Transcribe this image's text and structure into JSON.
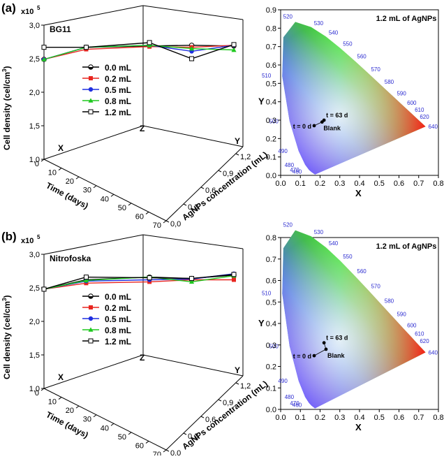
{
  "panels": [
    {
      "label": "(a)",
      "left": {
        "type": "line-3d",
        "title": "BG11",
        "scale_label": "x10",
        "scale_exp": "5",
        "ylabel": "Cell density (cel/cm",
        "ylabel_sup": "3",
        "ylabel_close": ")",
        "xlabel": "Time (days)",
        "zlabel": "AgNPs concentration (mL)",
        "axis_letters": {
          "x": "X",
          "z": "Z",
          "y": "Y"
        },
        "y_ticks": [
          "1,0",
          "1,5",
          "2,0",
          "2,5",
          "3,0"
        ],
        "y_tick_values": [
          1.0,
          1.5,
          2.0,
          2.5,
          3.0
        ],
        "time_ticks": [
          "0",
          "10",
          "20",
          "30",
          "40",
          "50",
          "60",
          "70"
        ],
        "conc_ticks": [
          "0,0",
          "0,3",
          "0,6",
          "0,9",
          "1,2"
        ],
        "series": [
          {
            "name": "0.0 mL",
            "color": "#000000",
            "marker": "half-circle",
            "values": [
              2.49,
              2.67,
              2.69,
              2.7,
              2.69
            ]
          },
          {
            "name": "0.2 mL",
            "color": "#e8251f",
            "marker": "square",
            "values": [
              2.49,
              2.64,
              2.68,
              2.67,
              2.7
            ]
          },
          {
            "name": "0.5 mL",
            "color": "#1f2fe0",
            "marker": "circle",
            "values": [
              2.49,
              2.67,
              2.7,
              2.61,
              2.7
            ]
          },
          {
            "name": "0.8 mL",
            "color": "#1ec81e",
            "marker": "triangle",
            "values": [
              2.49,
              2.67,
              2.7,
              2.65,
              2.63
            ]
          },
          {
            "name": "1.2 mL",
            "color": "#000000",
            "marker": "open-square",
            "values": [
              2.67,
              2.67,
              2.74,
              2.5,
              2.71
            ]
          }
        ]
      },
      "right": {
        "type": "cie-1931",
        "annotation": "1.2 mL of AgNPs",
        "xlabel": "X",
        "ylabel": "Y",
        "x_ticks": [
          "0.0",
          "0.1",
          "0.2",
          "0.3",
          "0.4",
          "0.5",
          "0.6",
          "0.7",
          "0.8"
        ],
        "y_ticks": [
          "0.0",
          "0.1",
          "0.2",
          "0.3",
          "0.4",
          "0.5",
          "0.6",
          "0.7",
          "0.8",
          "0.9"
        ],
        "wavelengths": [
          "460",
          "470",
          "480",
          "490",
          "500",
          "510",
          "520",
          "530",
          "540",
          "550",
          "560",
          "570",
          "580",
          "590",
          "600",
          "610",
          "620",
          "640"
        ],
        "points": [
          {
            "label": "t = 0 d",
            "x": 0.17,
            "y": 0.27
          },
          {
            "label": "t = 63 d",
            "x": 0.22,
            "y": 0.3
          },
          {
            "label": "Blank",
            "x": 0.21,
            "y": 0.29
          }
        ]
      }
    },
    {
      "label": "(b)",
      "left": {
        "type": "line-3d",
        "title": "Nitrofoska",
        "scale_label": "x10",
        "scale_exp": "5",
        "ylabel": "Cell density (cel/cm",
        "ylabel_sup": "3",
        "ylabel_close": ")",
        "xlabel": "Time (days)",
        "zlabel": "AgNPs concentration (mL)",
        "axis_letters": {
          "x": "X",
          "z": "Z",
          "y": "Y"
        },
        "y_ticks": [
          "1,0",
          "1,5",
          "2,0",
          "2,5",
          "3,0"
        ],
        "y_tick_values": [
          1.0,
          1.5,
          2.0,
          2.5,
          3.0
        ],
        "time_ticks": [
          "0",
          "10",
          "20",
          "30",
          "40",
          "50",
          "60",
          "70"
        ],
        "conc_ticks": [
          "0,0",
          "0,3",
          "0,6",
          "0,9",
          "1,2"
        ],
        "series": [
          {
            "name": "0.0 mL",
            "color": "#000000",
            "marker": "half-circle",
            "values": [
              2.48,
              2.62,
              2.66,
              2.64,
              2.69
            ]
          },
          {
            "name": "0.2 mL",
            "color": "#e8251f",
            "marker": "square",
            "values": [
              2.48,
              2.57,
              2.59,
              2.62,
              2.62
            ]
          },
          {
            "name": "0.5 mL",
            "color": "#1f2fe0",
            "marker": "circle",
            "values": [
              2.48,
              2.6,
              2.62,
              2.63,
              2.71
            ]
          },
          {
            "name": "0.8 mL",
            "color": "#1ec81e",
            "marker": "triangle",
            "values": [
              2.48,
              2.61,
              2.66,
              2.59,
              2.68
            ]
          },
          {
            "name": "1.2 mL",
            "color": "#000000",
            "marker": "open-square",
            "values": [
              2.48,
              2.66,
              2.65,
              2.64,
              2.7
            ]
          }
        ]
      },
      "right": {
        "type": "cie-1931",
        "annotation": "1.2 mL of AgNPs",
        "xlabel": "X",
        "ylabel": "Y",
        "x_ticks": [
          "0.0",
          "0.1",
          "0.2",
          "0.3",
          "0.4",
          "0.5",
          "0.6",
          "0.7",
          "0.8"
        ],
        "y_ticks": [
          "0.0",
          "0.1",
          "0.2",
          "0.3",
          "0.4",
          "0.5",
          "0.6",
          "0.7",
          "0.8"
        ],
        "wavelengths": [
          "460",
          "470",
          "480",
          "490",
          "500",
          "510",
          "520",
          "530",
          "540",
          "550",
          "560",
          "570",
          "580",
          "590",
          "600",
          "610",
          "620",
          "640"
        ],
        "points": [
          {
            "label": "t = 0 d",
            "x": 0.17,
            "y": 0.25
          },
          {
            "label": "t = 63 d",
            "x": 0.22,
            "y": 0.31
          },
          {
            "label": "Blank",
            "x": 0.23,
            "y": 0.28
          }
        ]
      }
    }
  ],
  "chart_data": [
    {
      "type": "line",
      "title": "BG11",
      "xlabel": "Time (days)",
      "ylabel": "Cell density (cel/cm3) x10^5",
      "zlabel": "AgNPs concentration (mL)",
      "x": [
        0,
        14,
        35,
        49,
        63
      ],
      "ylim": [
        1.0,
        3.0
      ],
      "series": [
        {
          "name": "0.0 mL",
          "values": [
            2.49,
            2.67,
            2.69,
            2.7,
            2.69
          ]
        },
        {
          "name": "0.2 mL",
          "values": [
            2.49,
            2.64,
            2.68,
            2.67,
            2.7
          ]
        },
        {
          "name": "0.5 mL",
          "values": [
            2.49,
            2.67,
            2.7,
            2.61,
            2.7
          ]
        },
        {
          "name": "0.8 mL",
          "values": [
            2.49,
            2.67,
            2.7,
            2.65,
            2.63
          ]
        },
        {
          "name": "1.2 mL",
          "values": [
            2.67,
            2.67,
            2.74,
            2.5,
            2.71
          ]
        }
      ]
    },
    {
      "type": "scatter",
      "title": "1.2 mL of AgNPs",
      "xlabel": "X",
      "ylabel": "Y",
      "xlim": [
        0.0,
        0.8
      ],
      "ylim": [
        0.0,
        0.9
      ],
      "points": [
        {
          "label": "t = 0 d",
          "x": 0.17,
          "y": 0.27
        },
        {
          "label": "t = 63 d",
          "x": 0.22,
          "y": 0.3
        },
        {
          "label": "Blank",
          "x": 0.21,
          "y": 0.29
        }
      ]
    },
    {
      "type": "line",
      "title": "Nitrofoska",
      "xlabel": "Time (days)",
      "ylabel": "Cell density (cel/cm3) x10^5",
      "zlabel": "AgNPs concentration (mL)",
      "x": [
        0,
        14,
        35,
        49,
        63
      ],
      "ylim": [
        1.0,
        3.0
      ],
      "series": [
        {
          "name": "0.0 mL",
          "values": [
            2.48,
            2.62,
            2.66,
            2.64,
            2.69
          ]
        },
        {
          "name": "0.2 mL",
          "values": [
            2.48,
            2.57,
            2.59,
            2.62,
            2.62
          ]
        },
        {
          "name": "0.5 mL",
          "values": [
            2.48,
            2.6,
            2.62,
            2.63,
            2.71
          ]
        },
        {
          "name": "0.8 mL",
          "values": [
            2.48,
            2.61,
            2.66,
            2.59,
            2.68
          ]
        },
        {
          "name": "1.2 mL",
          "values": [
            2.48,
            2.66,
            2.65,
            2.64,
            2.7
          ]
        }
      ]
    },
    {
      "type": "scatter",
      "title": "1.2 mL of AgNPs",
      "xlabel": "X",
      "ylabel": "Y",
      "xlim": [
        0.0,
        0.8
      ],
      "ylim": [
        0.0,
        0.8
      ],
      "points": [
        {
          "label": "t = 0 d",
          "x": 0.17,
          "y": 0.25
        },
        {
          "label": "t = 63 d",
          "x": 0.22,
          "y": 0.31
        },
        {
          "label": "Blank",
          "x": 0.23,
          "y": 0.28
        }
      ]
    }
  ]
}
